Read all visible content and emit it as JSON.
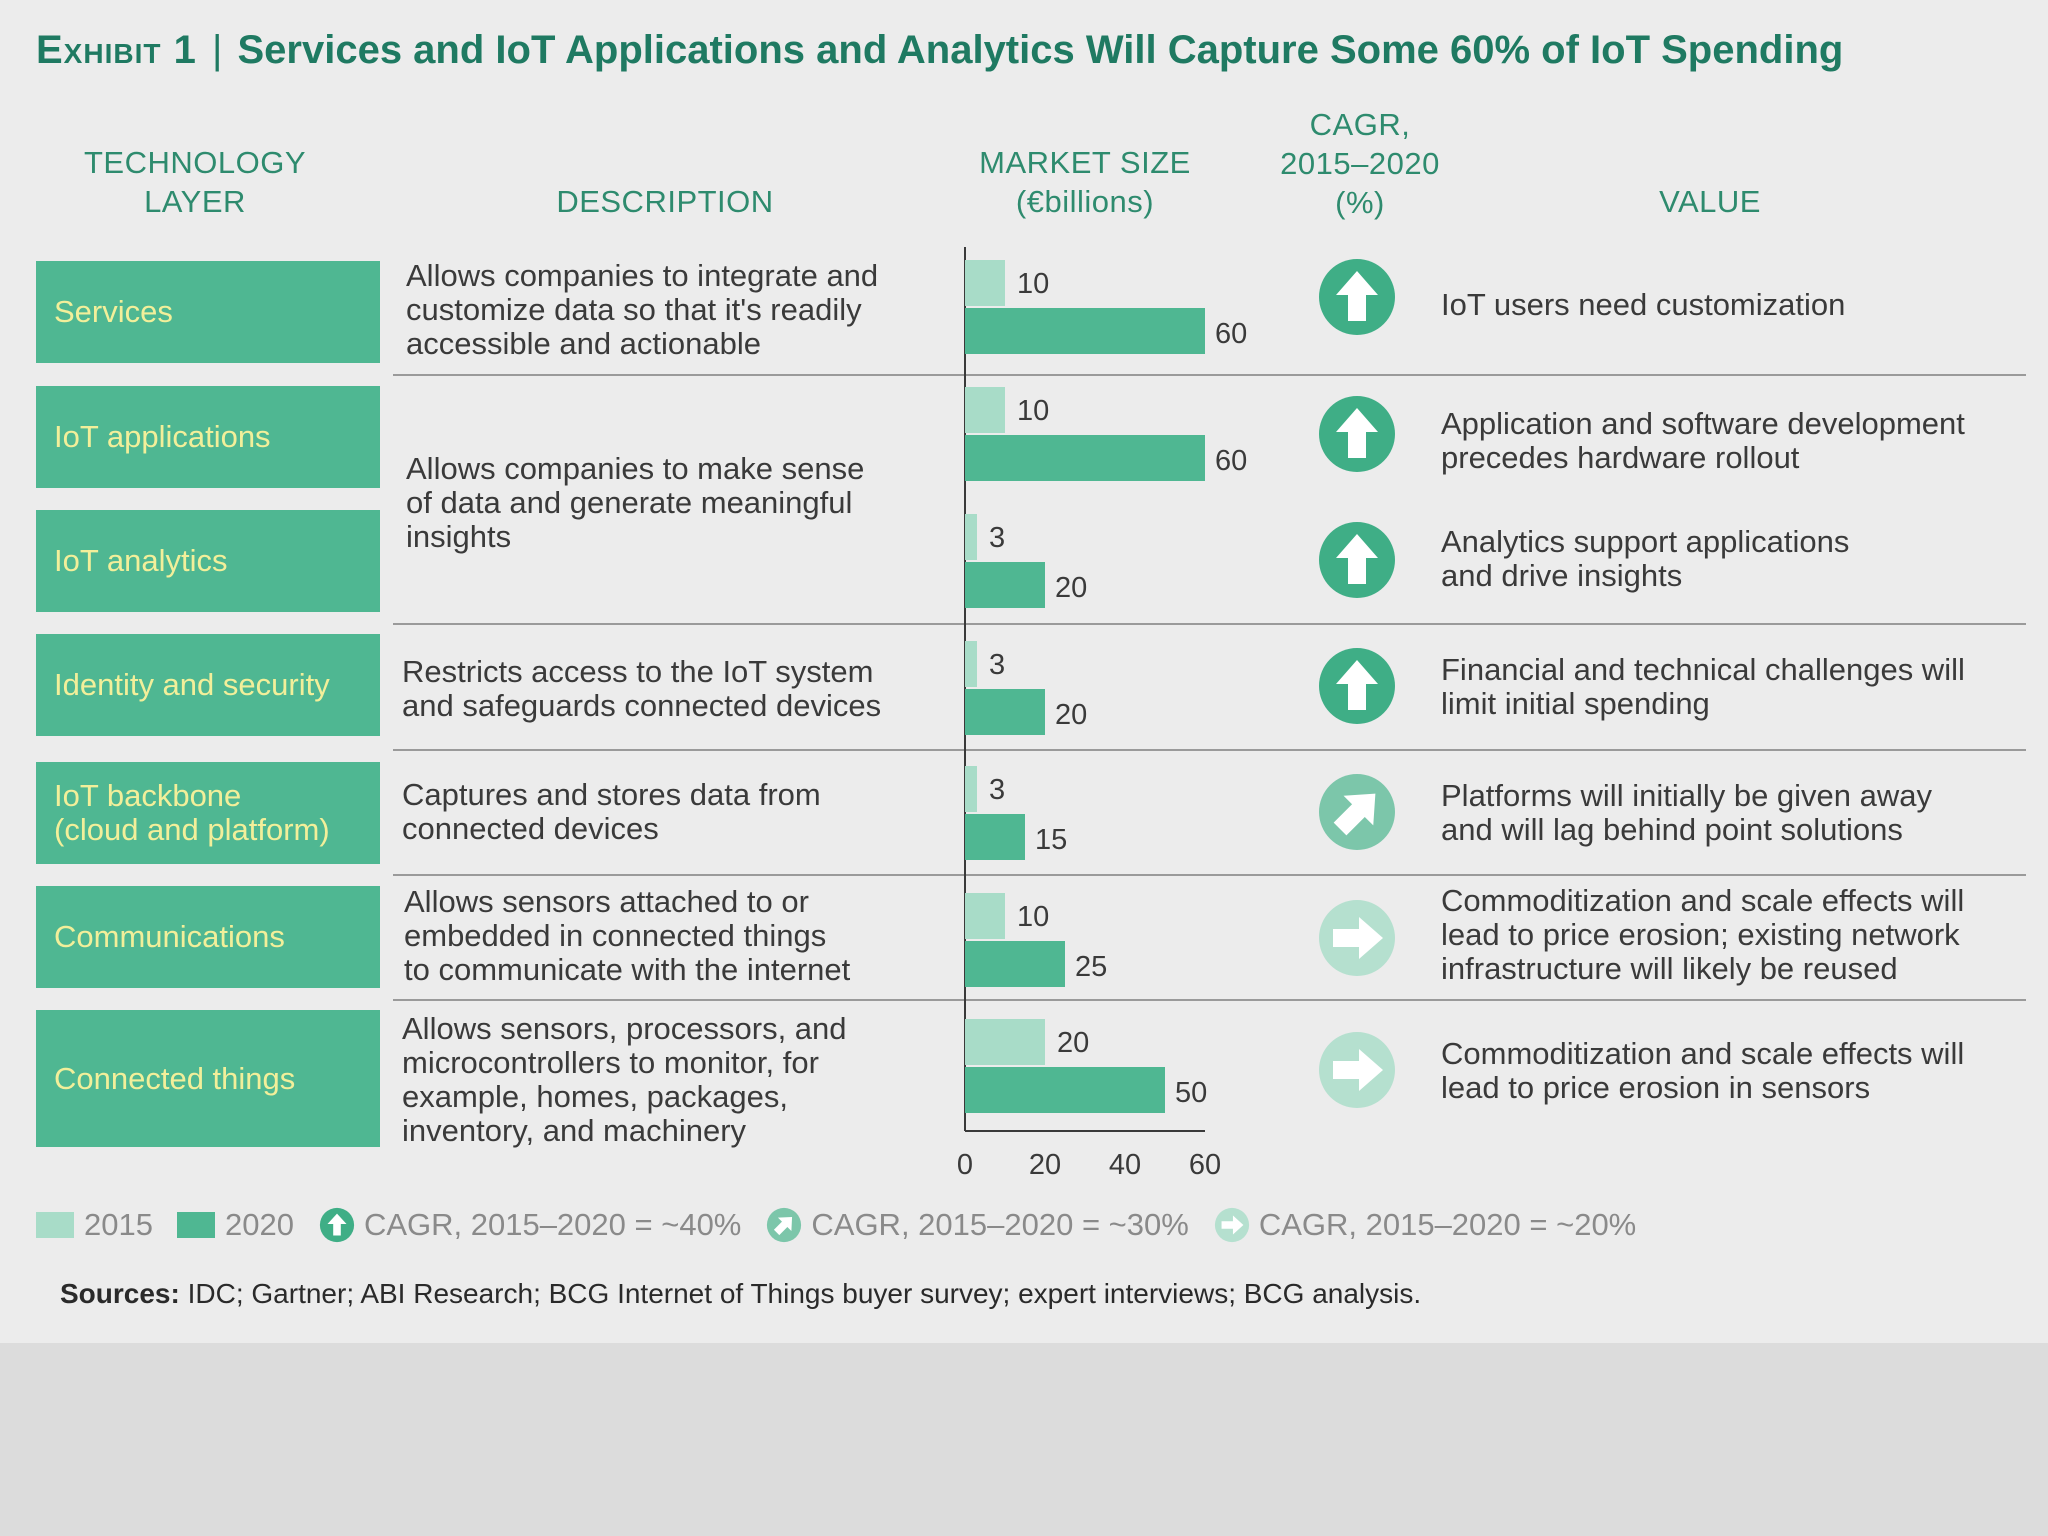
{
  "title": {
    "lead": "Exhibit 1",
    "separator": "|",
    "text": "Services and IoT Applications and Analytics Will Capture Some 60% of IoT Spending"
  },
  "headers": {
    "layer": [
      "TECHNOLOGY",
      "LAYER"
    ],
    "description": "DESCRIPTION",
    "market": [
      "MARKET SIZE",
      "(€billions)"
    ],
    "cagr": [
      "CAGR,",
      "2015–2020",
      "(%)"
    ],
    "value": "VALUE"
  },
  "rows": [
    {
      "layer": "Services",
      "description": [
        "Allows companies to integrate and",
        "customize data so that it's readily",
        "accessible and actionable"
      ],
      "value": [
        "IoT users need customization"
      ],
      "cagr_class": "~40%"
    },
    {
      "layer": "IoT applications",
      "description": [
        "Allows companies to make sense",
        "of data and generate meaningful",
        "insights"
      ],
      "value": [
        "Application and software development",
        "precedes hardware rollout"
      ],
      "cagr_class": "~40%"
    },
    {
      "layer": "IoT analytics",
      "description": [],
      "value": [
        "Analytics support applications",
        "and drive insights"
      ],
      "cagr_class": "~40%"
    },
    {
      "layer": "Identity and security",
      "description": [
        "Restricts access to the IoT system",
        "and safeguards connected devices"
      ],
      "value": [
        "Financial and technical challenges will",
        "limit initial spending"
      ],
      "cagr_class": "~40%"
    },
    {
      "layer": [
        "IoT backbone",
        "(cloud and platform)"
      ],
      "description": [
        "Captures and stores data from",
        "connected devices"
      ],
      "value": [
        "Platforms will initially be given away",
        "and will lag behind point solutions"
      ],
      "cagr_class": "~30%"
    },
    {
      "layer": "Communications",
      "description": [
        "Allows sensors attached to or",
        "embedded in connected things",
        "to communicate with the internet"
      ],
      "value": [
        "Commoditization and scale effects will",
        "lead to price erosion; existing network",
        "infrastructure will likely be reused"
      ],
      "cagr_class": "~20%"
    },
    {
      "layer": "Connected things",
      "description": [
        "Allows sensors, processors, and",
        "microcontrollers to monitor, for",
        "example, homes, packages,",
        "inventory, and machinery"
      ],
      "value": [
        "Commoditization and scale effects will",
        "lead to price erosion in sensors"
      ],
      "cagr_class": "~20%"
    }
  ],
  "chart_data": {
    "type": "bar",
    "orientation": "horizontal",
    "title": "MARKET SIZE (€billions)",
    "categories": [
      "Services",
      "IoT applications",
      "IoT analytics",
      "Identity and security",
      "IoT backbone (cloud and platform)",
      "Communications",
      "Connected things"
    ],
    "series": [
      {
        "name": "2015",
        "values": [
          10,
          10,
          3,
          3,
          3,
          10,
          20
        ]
      },
      {
        "name": "2020",
        "values": [
          60,
          60,
          20,
          20,
          15,
          25,
          50
        ]
      }
    ],
    "xlim": [
      0,
      60
    ],
    "xticks": [
      0,
      20,
      40,
      60
    ],
    "colors": {
      "2015": "#a8dcc8",
      "2020": "#4fb792"
    }
  },
  "legend": {
    "items": [
      {
        "label": "2015",
        "color": "#a8dcc8"
      },
      {
        "label": "2020",
        "color": "#4fb792"
      },
      {
        "label": "CAGR, 2015–2020 = ~40%",
        "icon": "up-arrow-icon"
      },
      {
        "label": "CAGR, 2015–2020 = ~30%",
        "icon": "diagonal-arrow-icon"
      },
      {
        "label": "CAGR, 2015–2020 = ~20%",
        "icon": "right-arrow-icon"
      }
    ]
  },
  "sources": {
    "label": "Sources:",
    "text": "IDC; Gartner; ABI Research; BCG Internet of Things buyer survey; expert interviews; BCG analysis."
  },
  "colors": {
    "accent": "#4fb792",
    "accent_light": "#a8dcc8",
    "title": "#1f7a62",
    "layer_text": "#f2ef9a",
    "background": "#ececec"
  }
}
